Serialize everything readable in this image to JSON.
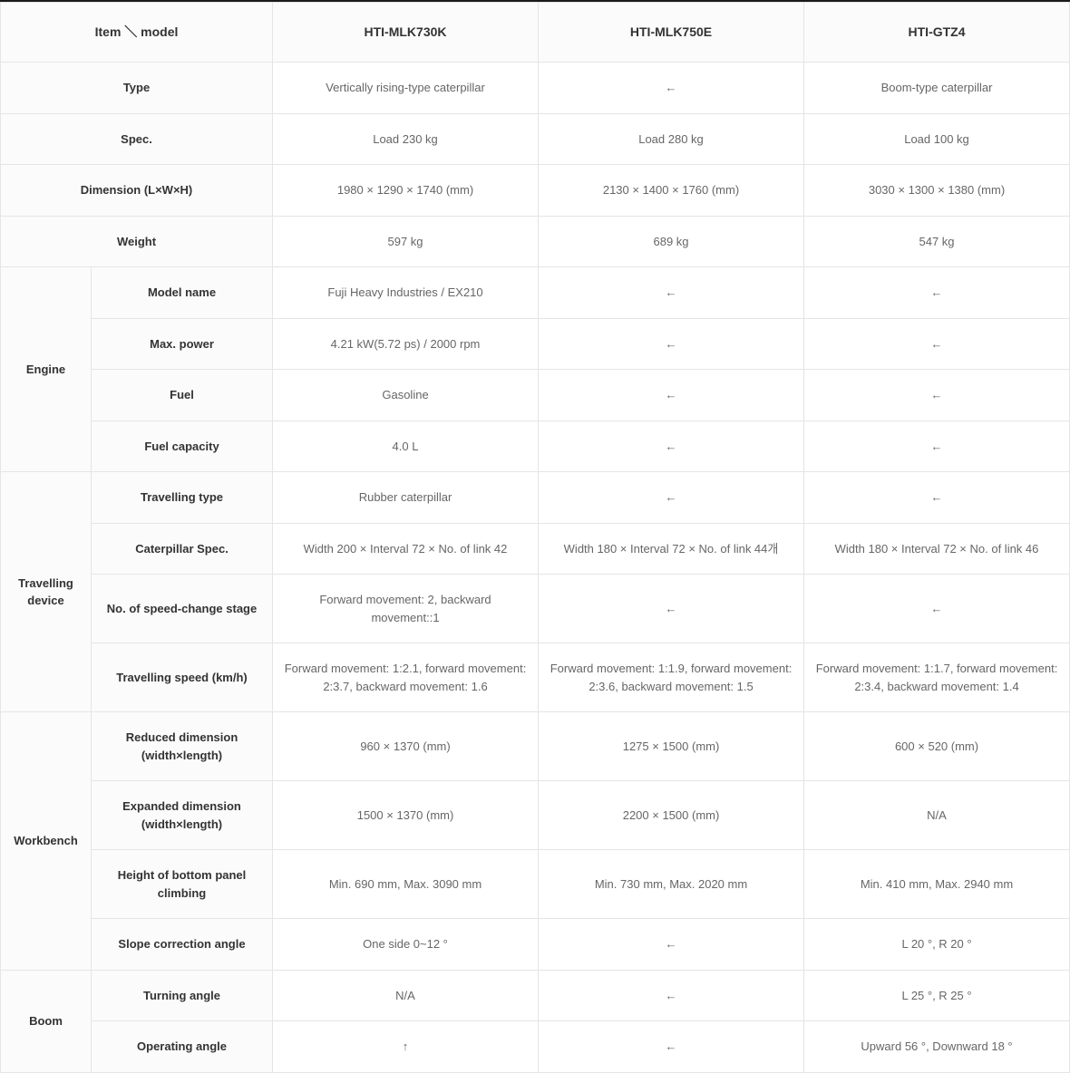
{
  "colors": {
    "border_top": "#1a1a1a",
    "cell_border": "#e5e5e5",
    "header_bg": "#fbfbfb",
    "header_text": "#333333",
    "cell_text": "#666666",
    "body_bg": "#ffffff"
  },
  "typography": {
    "font_family": "-apple-system, Segoe UI, Arial, sans-serif",
    "header_fontsize": 14,
    "cell_fontsize": 13,
    "header_weight": 700,
    "cell_weight": 400
  },
  "columns": {
    "widths": [
      100,
      200,
      293,
      293,
      293
    ],
    "headers": [
      "Item ＼ model",
      "HTI-MLK730K",
      "HTI-MLK750E",
      "HTI-GTZ4"
    ]
  },
  "simple_rows": [
    {
      "label": "Type",
      "vals": [
        "Vertically rising-type caterpillar",
        "←",
        "Boom-type caterpillar"
      ]
    },
    {
      "label": "Spec.",
      "vals": [
        "Load 230 kg",
        "Load 280 kg",
        "Load 100 kg"
      ]
    },
    {
      "label": "Dimension (L×W×H)",
      "vals": [
        "1980 × 1290 × 1740 (mm)",
        "2130 × 1400 × 1760 (mm)",
        "3030 × 1300 × 1380 (mm)"
      ]
    },
    {
      "label": "Weight",
      "vals": [
        "597 kg",
        "689 kg",
        "547 kg"
      ]
    }
  ],
  "groups": [
    {
      "category": "Engine",
      "rows": [
        {
          "label": "Model name",
          "vals": [
            "Fuji Heavy Industries / EX210",
            "←",
            "←"
          ]
        },
        {
          "label": "Max. power",
          "vals": [
            "4.21 kW(5.72 ps) / 2000 rpm",
            "←",
            "←"
          ]
        },
        {
          "label": "Fuel",
          "vals": [
            "Gasoline",
            "←",
            "←"
          ]
        },
        {
          "label": "Fuel capacity",
          "vals": [
            "4.0 L",
            "←",
            "←"
          ]
        }
      ]
    },
    {
      "category": "Travelling device",
      "rows": [
        {
          "label": "Travelling type",
          "vals": [
            "Rubber caterpillar",
            "←",
            "←"
          ]
        },
        {
          "label": "Caterpillar Spec.",
          "vals": [
            "Width 200 × Interval 72 × No. of link 42",
            "Width 180 × Interval 72 × No. of link 44개",
            "Width 180 × Interval 72 × No. of link 46"
          ]
        },
        {
          "label": "No. of speed-change stage",
          "vals": [
            "Forward movement: 2, backward movement::1",
            "←",
            "←"
          ]
        },
        {
          "label": "Travelling speed (km/h)",
          "vals": [
            "Forward movement: 1:2.1, forward movement: 2:3.7, backward movement: 1.6",
            "Forward movement: 1:1.9, forward movement: 2:3.6, backward movement: 1.5",
            "Forward movement: 1:1.7, forward movement: 2:3.4, backward movement: 1.4"
          ]
        }
      ]
    },
    {
      "category": "Workbench",
      "rows": [
        {
          "label": "Reduced dimension (width×length)",
          "vals": [
            "960 × 1370 (mm)",
            "1275 × 1500 (mm)",
            "600 × 520 (mm)"
          ]
        },
        {
          "label": "Expanded dimension (width×length)",
          "vals": [
            "1500 × 1370 (mm)",
            "2200 × 1500 (mm)",
            "N/A"
          ]
        },
        {
          "label": "Height of bottom panel climbing",
          "vals": [
            "Min. 690 mm, Max. 3090 mm",
            "Min. 730 mm, Max. 2020 mm",
            "Min. 410 mm, Max. 2940 mm"
          ]
        },
        {
          "label": "Slope correction angle",
          "vals": [
            "One side 0~12 °",
            "←",
            "L 20 °, R 20 °"
          ]
        }
      ]
    },
    {
      "category": "Boom",
      "rows": [
        {
          "label": "Turning angle",
          "vals": [
            "N/A",
            "←",
            "L 25 °, R 25 °"
          ]
        },
        {
          "label": "Operating angle",
          "vals": [
            "↑",
            "←",
            "Upward 56 °, Downward 18 °"
          ]
        }
      ]
    }
  ]
}
